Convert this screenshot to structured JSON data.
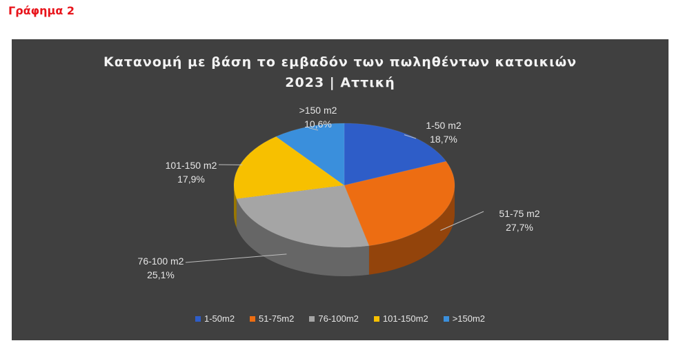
{
  "heading": "Γράφημα 2",
  "chart_data": {
    "type": "pie",
    "style": "3d-pie",
    "title_lines": [
      "Κατανομή με βάση το εμβαδόν των πωληθέντων κατοικιών",
      "2023 | Αττική"
    ],
    "categories": [
      "1-50m2",
      "51-75m2",
      "76-100m2",
      "101-150m2",
      ">150m2"
    ],
    "data_label_names": [
      "1-50 m2",
      "51-75 m2",
      "76-100 m2",
      "101-150 m2",
      ">150 m2"
    ],
    "values": [
      18.7,
      27.7,
      25.1,
      17.9,
      10.6
    ],
    "value_labels": [
      "18,7%",
      "27,7%",
      "25,1%",
      "17,9%",
      "10,6%"
    ],
    "colors": [
      "#2e5dc8",
      "#ed6d12",
      "#a5a5a5",
      "#f7c000",
      "#3a8fdc"
    ],
    "legend_position": "bottom",
    "background": "#404040"
  }
}
